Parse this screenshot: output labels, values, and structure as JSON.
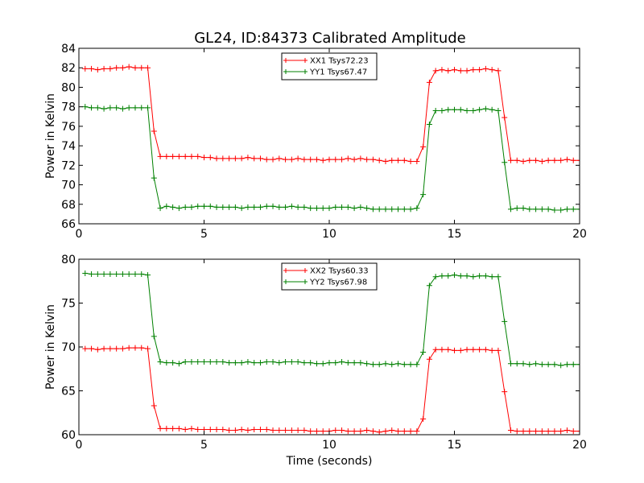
{
  "chart_data": {
    "title": "GL24, ID:84373 Calibrated Amplitude",
    "subplots": [
      {
        "type": "line",
        "ylabel": "Power in Kelvin",
        "xlabel": "",
        "xlim": [
          0,
          20
        ],
        "ylim": [
          66,
          84
        ],
        "xticks": [
          0,
          5,
          10,
          15,
          20
        ],
        "yticks": [
          66,
          68,
          70,
          72,
          74,
          76,
          78,
          80,
          82,
          84
        ],
        "legend_position": "top-center",
        "series": [
          {
            "name": "XX1 Tsys72.23",
            "color": "#ff0000",
            "x": [
              0.25,
              0.5,
              0.75,
              1.0,
              1.25,
              1.5,
              1.75,
              2.0,
              2.25,
              2.5,
              2.75,
              3.0,
              3.25,
              3.5,
              3.75,
              4.0,
              4.25,
              4.5,
              4.75,
              5.0,
              5.25,
              5.5,
              5.75,
              6.0,
              6.25,
              6.5,
              6.75,
              7.0,
              7.25,
              7.5,
              7.75,
              8.0,
              8.25,
              8.5,
              8.75,
              9.0,
              9.25,
              9.5,
              9.75,
              10.0,
              10.25,
              10.5,
              10.75,
              11.0,
              11.25,
              11.5,
              11.75,
              12.0,
              12.25,
              12.5,
              12.75,
              13.0,
              13.25,
              13.5,
              13.75,
              14.0,
              14.25,
              14.5,
              14.75,
              15.0,
              15.25,
              15.5,
              15.75,
              16.0,
              16.25,
              16.5,
              16.75,
              17.0,
              17.25,
              17.5,
              17.75,
              18.0,
              18.25,
              18.5,
              18.75,
              19.0,
              19.25,
              19.5,
              19.75,
              20.0
            ],
            "y": [
              81.9,
              81.9,
              81.8,
              81.9,
              81.9,
              82.0,
              82.0,
              82.1,
              82.0,
              82.0,
              82.0,
              75.5,
              72.9,
              72.9,
              72.9,
              72.9,
              72.9,
              72.9,
              72.9,
              72.8,
              72.8,
              72.7,
              72.7,
              72.7,
              72.7,
              72.7,
              72.8,
              72.7,
              72.7,
              72.6,
              72.6,
              72.7,
              72.6,
              72.6,
              72.7,
              72.6,
              72.6,
              72.6,
              72.5,
              72.6,
              72.6,
              72.6,
              72.7,
              72.6,
              72.7,
              72.6,
              72.6,
              72.5,
              72.4,
              72.5,
              72.5,
              72.5,
              72.4,
              72.4,
              73.9,
              80.5,
              81.7,
              81.8,
              81.7,
              81.8,
              81.7,
              81.7,
              81.8,
              81.8,
              81.9,
              81.8,
              81.7,
              76.9,
              72.5,
              72.5,
              72.4,
              72.5,
              72.5,
              72.4,
              72.5,
              72.5,
              72.5,
              72.6,
              72.5,
              72.5
            ]
          },
          {
            "name": "YY1 Tsys67.47",
            "color": "#008000",
            "x": [
              0.25,
              0.5,
              0.75,
              1.0,
              1.25,
              1.5,
              1.75,
              2.0,
              2.25,
              2.5,
              2.75,
              3.0,
              3.25,
              3.5,
              3.75,
              4.0,
              4.25,
              4.5,
              4.75,
              5.0,
              5.25,
              5.5,
              5.75,
              6.0,
              6.25,
              6.5,
              6.75,
              7.0,
              7.25,
              7.5,
              7.75,
              8.0,
              8.25,
              8.5,
              8.75,
              9.0,
              9.25,
              9.5,
              9.75,
              10.0,
              10.25,
              10.5,
              10.75,
              11.0,
              11.25,
              11.5,
              11.75,
              12.0,
              12.25,
              12.5,
              12.75,
              13.0,
              13.25,
              13.5,
              13.75,
              14.0,
              14.25,
              14.5,
              14.75,
              15.0,
              15.25,
              15.5,
              15.75,
              16.0,
              16.25,
              16.5,
              16.75,
              17.0,
              17.25,
              17.5,
              17.75,
              18.0,
              18.25,
              18.5,
              18.75,
              19.0,
              19.25,
              19.5,
              19.75,
              20.0
            ],
            "y": [
              78.0,
              77.9,
              77.9,
              77.8,
              77.9,
              77.9,
              77.8,
              77.9,
              77.9,
              77.9,
              77.9,
              70.7,
              67.6,
              67.8,
              67.7,
              67.6,
              67.7,
              67.7,
              67.8,
              67.8,
              67.8,
              67.7,
              67.7,
              67.7,
              67.7,
              67.6,
              67.7,
              67.7,
              67.7,
              67.8,
              67.8,
              67.7,
              67.7,
              67.8,
              67.7,
              67.7,
              67.6,
              67.6,
              67.6,
              67.6,
              67.7,
              67.7,
              67.7,
              67.6,
              67.7,
              67.6,
              67.5,
              67.5,
              67.5,
              67.5,
              67.5,
              67.5,
              67.5,
              67.6,
              69.0,
              76.2,
              77.6,
              77.6,
              77.7,
              77.7,
              77.7,
              77.6,
              77.6,
              77.7,
              77.8,
              77.7,
              77.6,
              72.3,
              67.5,
              67.6,
              67.6,
              67.5,
              67.5,
              67.5,
              67.5,
              67.4,
              67.4,
              67.5,
              67.5,
              67.5
            ]
          }
        ]
      },
      {
        "type": "line",
        "ylabel": "Power in Kelvin",
        "xlabel": "Time (seconds)",
        "xlim": [
          0,
          20
        ],
        "ylim": [
          60,
          80
        ],
        "xticks": [
          0,
          5,
          10,
          15,
          20
        ],
        "yticks": [
          60,
          65,
          70,
          75,
          80
        ],
        "legend_position": "top-center",
        "series": [
          {
            "name": "XX2 Tsys60.33",
            "color": "#ff0000",
            "x": [
              0.25,
              0.5,
              0.75,
              1.0,
              1.25,
              1.5,
              1.75,
              2.0,
              2.25,
              2.5,
              2.75,
              3.0,
              3.25,
              3.5,
              3.75,
              4.0,
              4.25,
              4.5,
              4.75,
              5.0,
              5.25,
              5.5,
              5.75,
              6.0,
              6.25,
              6.5,
              6.75,
              7.0,
              7.25,
              7.5,
              7.75,
              8.0,
              8.25,
              8.5,
              8.75,
              9.0,
              9.25,
              9.5,
              9.75,
              10.0,
              10.25,
              10.5,
              10.75,
              11.0,
              11.25,
              11.5,
              11.75,
              12.0,
              12.25,
              12.5,
              12.75,
              13.0,
              13.25,
              13.5,
              13.75,
              14.0,
              14.25,
              14.5,
              14.75,
              15.0,
              15.25,
              15.5,
              15.75,
              16.0,
              16.25,
              16.5,
              16.75,
              17.0,
              17.25,
              17.5,
              17.75,
              18.0,
              18.25,
              18.5,
              18.75,
              19.0,
              19.25,
              19.5,
              19.75,
              20.0
            ],
            "y": [
              69.8,
              69.8,
              69.7,
              69.8,
              69.8,
              69.8,
              69.8,
              69.9,
              69.9,
              69.9,
              69.8,
              63.3,
              60.7,
              60.7,
              60.7,
              60.7,
              60.6,
              60.7,
              60.6,
              60.6,
              60.6,
              60.6,
              60.6,
              60.5,
              60.5,
              60.6,
              60.5,
              60.6,
              60.6,
              60.6,
              60.5,
              60.5,
              60.5,
              60.5,
              60.5,
              60.5,
              60.4,
              60.4,
              60.4,
              60.4,
              60.5,
              60.5,
              60.4,
              60.4,
              60.4,
              60.5,
              60.4,
              60.3,
              60.4,
              60.5,
              60.4,
              60.4,
              60.4,
              60.4,
              61.8,
              68.6,
              69.7,
              69.7,
              69.7,
              69.6,
              69.6,
              69.7,
              69.7,
              69.7,
              69.7,
              69.6,
              69.6,
              64.9,
              60.5,
              60.4,
              60.4,
              60.4,
              60.4,
              60.4,
              60.4,
              60.4,
              60.4,
              60.5,
              60.4,
              60.4
            ]
          },
          {
            "name": "YY2 Tsys67.98",
            "color": "#008000",
            "x": [
              0.25,
              0.5,
              0.75,
              1.0,
              1.25,
              1.5,
              1.75,
              2.0,
              2.25,
              2.5,
              2.75,
              3.0,
              3.25,
              3.5,
              3.75,
              4.0,
              4.25,
              4.5,
              4.75,
              5.0,
              5.25,
              5.5,
              5.75,
              6.0,
              6.25,
              6.5,
              6.75,
              7.0,
              7.25,
              7.5,
              7.75,
              8.0,
              8.25,
              8.5,
              8.75,
              9.0,
              9.25,
              9.5,
              9.75,
              10.0,
              10.25,
              10.5,
              10.75,
              11.0,
              11.25,
              11.5,
              11.75,
              12.0,
              12.25,
              12.5,
              12.75,
              13.0,
              13.25,
              13.5,
              13.75,
              14.0,
              14.25,
              14.5,
              14.75,
              15.0,
              15.25,
              15.5,
              15.75,
              16.0,
              16.25,
              16.5,
              16.75,
              17.0,
              17.25,
              17.5,
              17.75,
              18.0,
              18.25,
              18.5,
              18.75,
              19.0,
              19.25,
              19.5,
              19.75,
              20.0
            ],
            "y": [
              78.4,
              78.3,
              78.3,
              78.3,
              78.3,
              78.3,
              78.3,
              78.3,
              78.3,
              78.3,
              78.2,
              71.2,
              68.3,
              68.2,
              68.2,
              68.1,
              68.3,
              68.3,
              68.3,
              68.3,
              68.3,
              68.3,
              68.3,
              68.2,
              68.2,
              68.2,
              68.3,
              68.2,
              68.2,
              68.3,
              68.3,
              68.2,
              68.3,
              68.3,
              68.3,
              68.2,
              68.2,
              68.1,
              68.1,
              68.2,
              68.2,
              68.3,
              68.2,
              68.2,
              68.2,
              68.1,
              68.0,
              68.0,
              68.1,
              68.0,
              68.1,
              68.0,
              68.0,
              68.0,
              69.4,
              77.0,
              78.0,
              78.1,
              78.1,
              78.2,
              78.1,
              78.1,
              78.0,
              78.1,
              78.1,
              78.0,
              78.0,
              72.9,
              68.1,
              68.1,
              68.1,
              68.0,
              68.1,
              68.0,
              68.0,
              68.0,
              67.9,
              68.0,
              68.0,
              68.0
            ]
          }
        ]
      }
    ]
  }
}
